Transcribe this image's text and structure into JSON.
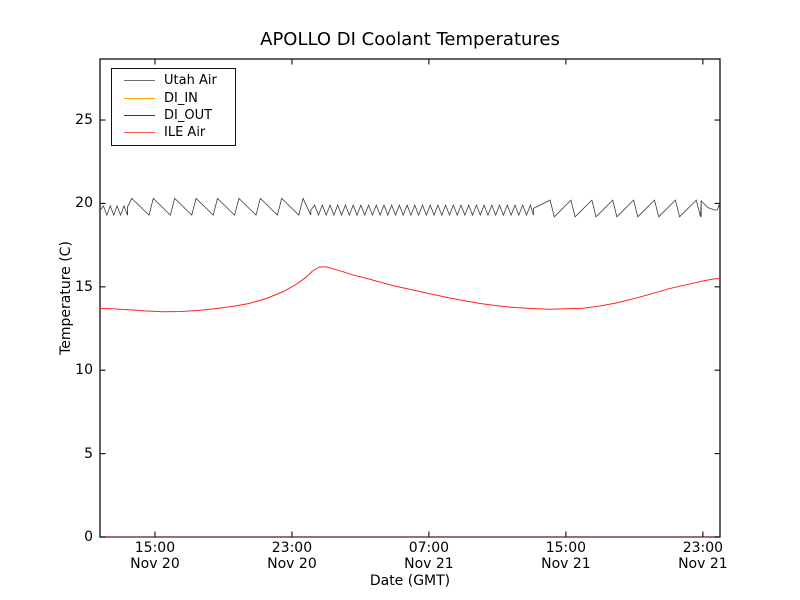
{
  "chart_data": {
    "type": "line",
    "title": "APOLLO DI Coolant Temperatures",
    "xlabel": "Date (GMT)",
    "ylabel": "Temperature (C)",
    "x_unit": "hours since Nov 20 00:00 GMT",
    "xlim": [
      11.79,
      48.0
    ],
    "ylim": [
      0,
      28.66
    ],
    "grid": false,
    "legend_position": "upper-left",
    "x_ticks": [
      {
        "hour": 15,
        "time": "15:00",
        "date": "Nov 20"
      },
      {
        "hour": 23,
        "time": "23:00",
        "date": "Nov 20"
      },
      {
        "hour": 31,
        "time": "07:00",
        "date": "Nov 21"
      },
      {
        "hour": 39,
        "time": "15:00",
        "date": "Nov 21"
      },
      {
        "hour": 47,
        "time": "23:00",
        "date": "Nov 21"
      }
    ],
    "y_ticks": [
      0,
      5,
      10,
      15,
      20,
      25
    ],
    "series": [
      {
        "name": "Utah Air",
        "color": "#3c3c3c",
        "legend_color": "#6e6e6e",
        "line_width": 0.8,
        "style": "sawtooth",
        "summary": "air temperature cycling between about 19.2 and 20.3 C; fast small cycles 24:00-13:00 Nov 21, slower larger cycles elsewhere",
        "segments": [
          {
            "from": 11.79,
            "to": 13.4,
            "period": 0.4,
            "min": 19.3,
            "max": 19.85,
            "rise_frac": 0.5
          },
          {
            "from": 13.4,
            "to": 24.1,
            "period": 1.25,
            "min": 19.3,
            "max": 20.3,
            "rise_frac": 0.2
          },
          {
            "from": 24.1,
            "to": 37.1,
            "period": 0.45,
            "min": 19.3,
            "max": 19.9,
            "rise_frac": 0.5
          },
          {
            "from": 37.1,
            "to": 46.9,
            "period": 1.22,
            "min": 19.2,
            "max": 20.2,
            "rise_frac": 0.8
          }
        ],
        "tail_points": [
          [
            46.9,
            20.15
          ],
          [
            47.3,
            19.75
          ],
          [
            47.7,
            19.6
          ],
          [
            47.85,
            19.62
          ],
          [
            47.95,
            19.9
          ],
          [
            48.0,
            19.65
          ]
        ]
      },
      {
        "name": "DI_IN",
        "color": "#ffa500",
        "legend_color": "#ffa500",
        "line_width": 1.1,
        "style": "constant",
        "value": 0.0
      },
      {
        "name": "DI_OUT",
        "color": "#800080",
        "legend_color": "#800080",
        "line_width": 1.1,
        "opacity": 0.75,
        "style": "constant",
        "value": 0.0
      },
      {
        "name": "ILE Air",
        "color": "#ff2420",
        "legend_color": "#ff5a55",
        "line_width": 1.0,
        "style": "points",
        "points": [
          [
            11.79,
            13.7
          ],
          [
            12.5,
            13.68
          ],
          [
            13.5,
            13.62
          ],
          [
            14.5,
            13.55
          ],
          [
            15.5,
            13.5
          ],
          [
            16.5,
            13.52
          ],
          [
            17.5,
            13.58
          ],
          [
            18.5,
            13.68
          ],
          [
            19.5,
            13.82
          ],
          [
            20.5,
            14.0
          ],
          [
            21.5,
            14.3
          ],
          [
            22.5,
            14.72
          ],
          [
            23.2,
            15.12
          ],
          [
            23.8,
            15.55
          ],
          [
            24.2,
            15.95
          ],
          [
            24.6,
            16.18
          ],
          [
            25.0,
            16.2
          ],
          [
            25.4,
            16.08
          ],
          [
            26.0,
            15.9
          ],
          [
            26.6,
            15.7
          ],
          [
            27.4,
            15.5
          ],
          [
            28.0,
            15.32
          ],
          [
            29.0,
            15.05
          ],
          [
            30.0,
            14.82
          ],
          [
            31.0,
            14.6
          ],
          [
            32.0,
            14.38
          ],
          [
            33.0,
            14.18
          ],
          [
            34.0,
            14.0
          ],
          [
            35.0,
            13.86
          ],
          [
            36.0,
            13.76
          ],
          [
            37.0,
            13.7
          ],
          [
            38.0,
            13.66
          ],
          [
            39.0,
            13.68
          ],
          [
            40.0,
            13.72
          ],
          [
            41.0,
            13.85
          ],
          [
            42.0,
            14.05
          ],
          [
            43.0,
            14.3
          ],
          [
            44.0,
            14.58
          ],
          [
            45.0,
            14.88
          ],
          [
            46.0,
            15.12
          ],
          [
            47.0,
            15.35
          ],
          [
            47.6,
            15.47
          ],
          [
            48.0,
            15.5
          ]
        ]
      }
    ]
  }
}
